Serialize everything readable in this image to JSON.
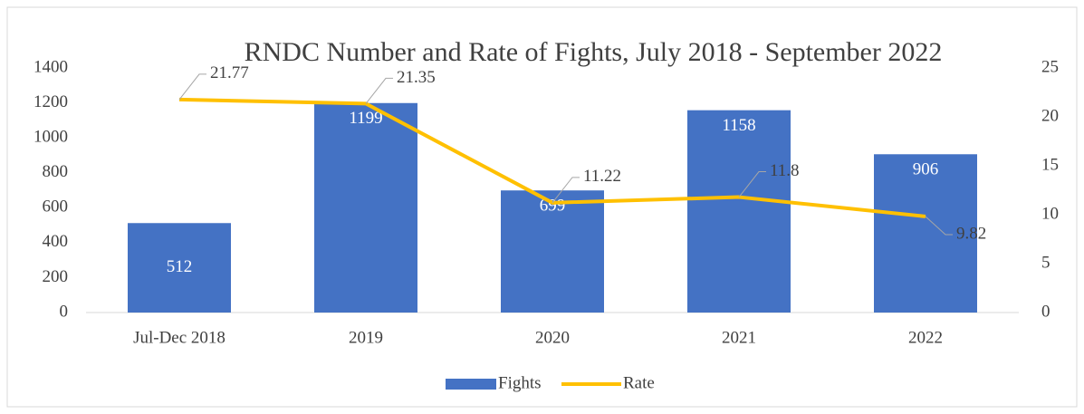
{
  "chart_data": {
    "type": "bar_line",
    "title": "RNDC Number and Rate of Fights, July 2018 - September 2022",
    "categories": [
      "Jul-Dec 2018",
      "2019",
      "2020",
      "2021",
      "2022"
    ],
    "series": [
      {
        "name": "Fights",
        "type": "bar",
        "color": "#4472c4",
        "values": [
          512,
          1199,
          699,
          1158,
          906
        ]
      },
      {
        "name": "Rate",
        "type": "line",
        "color": "#ffc000",
        "axis": "y2",
        "values": [
          21.77,
          21.35,
          11.22,
          11.8,
          9.82
        ]
      }
    ],
    "ylim": [
      0,
      1400
    ],
    "yticks": [
      0,
      200,
      400,
      600,
      800,
      1000,
      1200,
      1400
    ],
    "y2lim": [
      0,
      25
    ],
    "y2ticks": [
      0,
      5,
      10,
      15,
      20,
      25
    ],
    "legend": "bottom"
  }
}
